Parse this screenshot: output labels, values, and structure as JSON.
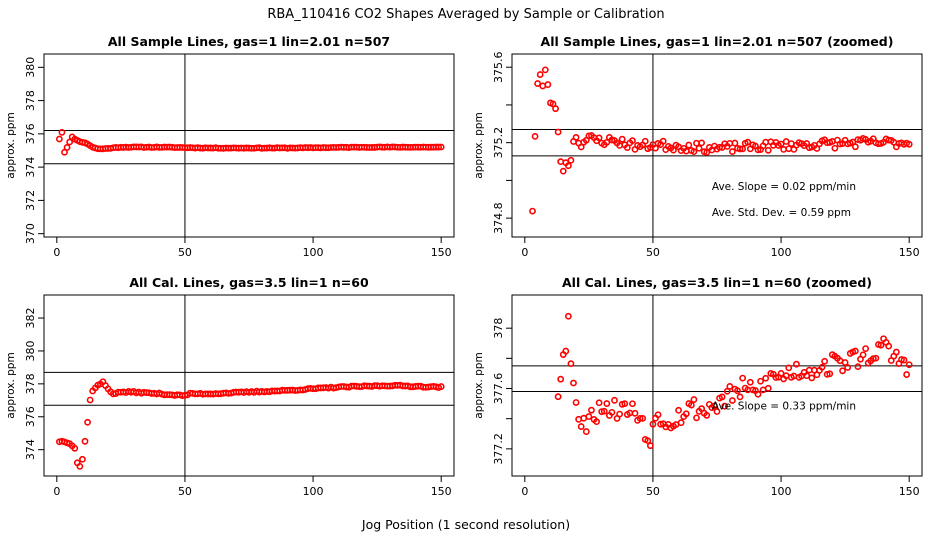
{
  "page": {
    "main_title": "RBA_110416  CO2 Shapes Averaged by Sample or Calibration",
    "xlabel": "Jog Position (1 second resolution)"
  },
  "chart_data": [
    {
      "type": "scatter",
      "title": "All Sample Lines, gas=1 lin=2.01 n=507",
      "ylabel": "approx. ppm",
      "xlim": [
        -5,
        155
      ],
      "ylim": [
        369.8,
        380.8
      ],
      "xticks": [
        0,
        50,
        100,
        150
      ],
      "yticks": [
        370,
        372,
        374,
        376,
        378,
        380
      ],
      "vline": 50,
      "hlines": [
        374.2,
        376.2
      ],
      "annotations": [],
      "seed": 11,
      "series": [
        {
          "color": "#ff0000",
          "anchors": [
            [
              1,
              375.7
            ],
            [
              2,
              376.1
            ],
            [
              3,
              374.9
            ],
            [
              4,
              375.2
            ],
            [
              5,
              375.5
            ],
            [
              6,
              375.8
            ],
            [
              7,
              375.7
            ],
            [
              8,
              375.6
            ],
            [
              10,
              375.5
            ],
            [
              12,
              375.4
            ],
            [
              14,
              375.2
            ],
            [
              16,
              375.1
            ],
            [
              18,
              375.1
            ],
            [
              25,
              375.2
            ],
            [
              40,
              375.2
            ],
            [
              60,
              375.15
            ],
            [
              90,
              375.15
            ],
            [
              120,
              375.2
            ],
            [
              150,
              375.2
            ]
          ],
          "noise": 0.02
        }
      ]
    },
    {
      "type": "scatter",
      "title": "All Sample Lines, gas=1 lin=2.01 n=507 (zoomed)",
      "ylabel": "approx. ppm",
      "xlim": [
        -5,
        155
      ],
      "ylim": [
        374.7,
        375.67
      ],
      "xticks": [
        0,
        50,
        100,
        150
      ],
      "yticks": [
        374.8,
        375.2,
        375.6
      ],
      "yticks_minor": [
        375.0,
        375.4
      ],
      "vline": 50,
      "hlines": [
        375.13,
        375.27
      ],
      "annotations": [
        {
          "text": "Ave. Slope =  0.02  ppm/min",
          "x": 73,
          "y": 374.95
        },
        {
          "text": "Ave. Std. Dev. =  0.59  ppm",
          "x": 73,
          "y": 374.81
        }
      ],
      "seed": 23,
      "series": [
        {
          "color": "#ff0000",
          "anchors": [
            [
              3,
              374.85
            ],
            [
              4,
              375.24
            ],
            [
              5,
              375.51
            ],
            [
              6,
              375.56
            ],
            [
              7,
              375.49
            ],
            [
              8,
              375.57
            ],
            [
              9,
              375.52
            ],
            [
              10,
              375.4
            ],
            [
              11,
              375.42
            ],
            [
              12,
              375.36
            ],
            [
              13,
              375.27
            ],
            [
              14,
              375.1
            ],
            [
              15,
              375.07
            ],
            [
              16,
              375.08
            ],
            [
              17,
              375.09
            ],
            [
              18,
              375.12
            ],
            [
              19,
              375.22
            ],
            [
              20,
              375.22
            ],
            [
              22,
              375.2
            ],
            [
              25,
              375.22
            ],
            [
              30,
              375.21
            ],
            [
              35,
              375.21
            ],
            [
              45,
              375.18
            ],
            [
              50,
              375.19
            ],
            [
              60,
              375.18
            ],
            [
              75,
              375.17
            ],
            [
              90,
              375.18
            ],
            [
              110,
              375.19
            ],
            [
              130,
              375.2
            ],
            [
              150,
              375.2
            ]
          ],
          "noise": 0.025
        }
      ]
    },
    {
      "type": "scatter",
      "title": "All Cal. Lines, gas=3.5 lin=1 n=60",
      "ylabel": "approx. ppm",
      "xlim": [
        -5,
        155
      ],
      "ylim": [
        372.4,
        383.4
      ],
      "xticks": [
        0,
        50,
        100,
        150
      ],
      "yticks": [
        374,
        376,
        378,
        380,
        382
      ],
      "vline": 50,
      "hlines": [
        376.7,
        378.7
      ],
      "annotations": [],
      "seed": 37,
      "series": [
        {
          "color": "#ff0000",
          "anchors": [
            [
              1,
              374.5
            ],
            [
              3,
              374.5
            ],
            [
              5,
              374.4
            ],
            [
              7,
              374.1
            ],
            [
              8,
              373.2
            ],
            [
              9,
              373.0
            ],
            [
              10,
              373.4
            ],
            [
              11,
              374.5
            ],
            [
              12,
              375.7
            ],
            [
              13,
              377.0
            ],
            [
              14,
              377.6
            ],
            [
              16,
              377.9
            ],
            [
              18,
              378.1
            ],
            [
              19,
              377.9
            ],
            [
              20,
              377.7
            ],
            [
              22,
              377.4
            ],
            [
              25,
              377.5
            ],
            [
              30,
              377.5
            ],
            [
              40,
              377.4
            ],
            [
              48,
              377.3
            ],
            [
              50,
              377.3
            ],
            [
              52,
              377.4
            ],
            [
              60,
              377.4
            ],
            [
              75,
              377.5
            ],
            [
              90,
              377.6
            ],
            [
              110,
              377.8
            ],
            [
              130,
              377.9
            ],
            [
              150,
              377.8
            ]
          ],
          "noise": 0.04
        }
      ]
    },
    {
      "type": "scatter",
      "title": "All Cal. Lines, gas=3.5 lin=1 n=60 (zoomed)",
      "ylabel": "approx. ppm",
      "xlim": [
        -5,
        155
      ],
      "ylim": [
        377.02,
        378.22
      ],
      "xticks": [
        0,
        50,
        100,
        150
      ],
      "yticks": [
        377.2,
        377.6,
        378.0
      ],
      "yticks_minor": [
        377.4,
        377.8
      ],
      "vline": 50,
      "hlines": [
        377.58,
        377.75
      ],
      "annotations": [
        {
          "text": "Ave. Slope =  0.33  ppm/min",
          "x": 73,
          "y": 377.46
        }
      ],
      "seed": 53,
      "series": [
        {
          "color": "#ff0000",
          "anchors": [
            [
              13,
              377.58
            ],
            [
              14,
              377.72
            ],
            [
              15,
              377.88
            ],
            [
              16,
              377.83
            ],
            [
              17,
              378.05
            ],
            [
              18,
              377.8
            ],
            [
              19,
              377.68
            ],
            [
              20,
              377.55
            ],
            [
              21,
              377.4
            ],
            [
              22,
              377.33
            ],
            [
              24,
              377.38
            ],
            [
              26,
              377.48
            ],
            [
              28,
              377.42
            ],
            [
              30,
              377.5
            ],
            [
              34,
              377.46
            ],
            [
              38,
              377.47
            ],
            [
              42,
              377.45
            ],
            [
              46,
              377.4
            ],
            [
              48,
              377.25
            ],
            [
              50,
              377.33
            ],
            [
              52,
              377.45
            ],
            [
              55,
              377.38
            ],
            [
              60,
              377.42
            ],
            [
              65,
              377.48
            ],
            [
              70,
              377.45
            ],
            [
              75,
              377.5
            ],
            [
              80,
              377.55
            ],
            [
              85,
              377.6
            ],
            [
              90,
              377.57
            ],
            [
              95,
              377.66
            ],
            [
              100,
              377.68
            ],
            [
              105,
              377.72
            ],
            [
              110,
              377.72
            ],
            [
              115,
              377.74
            ],
            [
              120,
              377.76
            ],
            [
              125,
              377.78
            ],
            [
              130,
              377.8
            ],
            [
              135,
              377.83
            ],
            [
              140,
              377.87
            ],
            [
              145,
              377.8
            ],
            [
              150,
              377.75
            ]
          ],
          "noise": 0.07
        }
      ]
    }
  ]
}
